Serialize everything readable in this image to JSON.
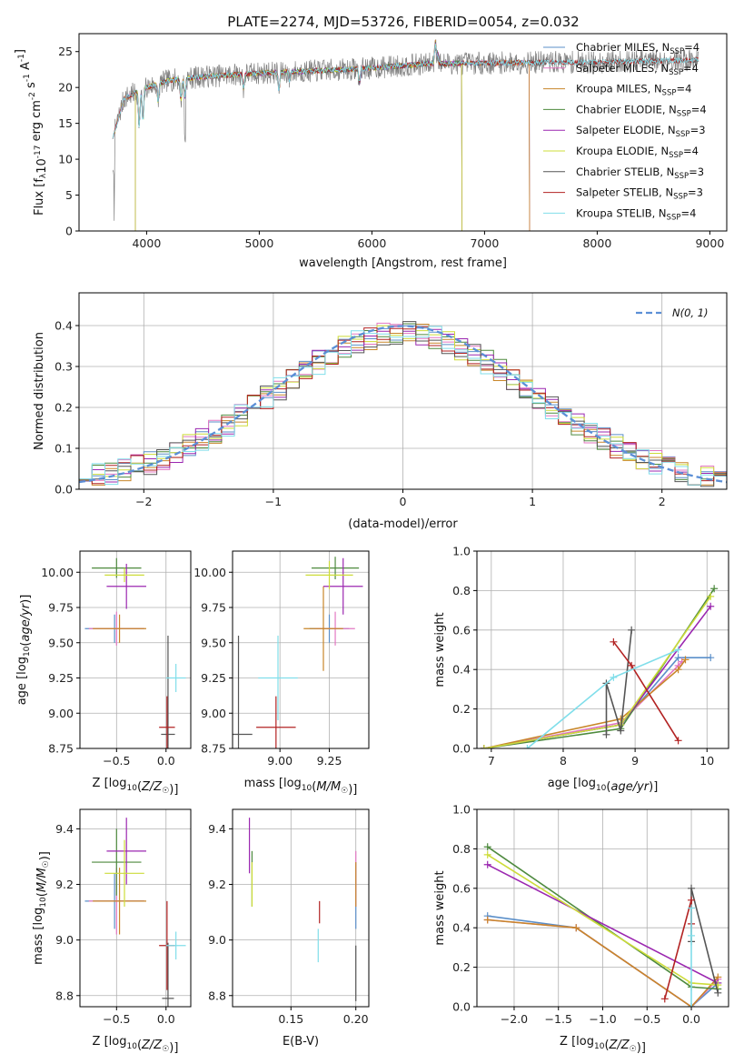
{
  "page_title": "PLATE=2274, MJD=53726, FIBERID=0054, z=0.032",
  "colors": {
    "chabrier_miles": "#5b8fc9",
    "salpeter_miles": "#e377c2",
    "kroupa_miles": "#c8862a",
    "chabrier_elodie": "#4e8a3e",
    "salpeter_elodie": "#9b27b0",
    "kroupa_elodie": "#cddc39",
    "chabrier_stelib": "#555555",
    "salpeter_stelib": "#b22222",
    "kroupa_stelib": "#80deea",
    "normal": "#5b8fd6"
  },
  "chart_data": [
    {
      "id": "spectrum",
      "type": "line",
      "xlabel": "wavelength [Angstrom, rest frame]",
      "ylabel": "Flux [f_λ10^-17 erg cm^-2 s^-1 A^-1]",
      "xlim": [
        3400,
        9150
      ],
      "ylim": [
        0,
        27.5
      ],
      "xticks": [
        4000,
        5000,
        6000,
        7000,
        8000,
        9000
      ],
      "yticks": [
        0,
        5,
        10,
        15,
        20,
        25
      ],
      "grid": false,
      "legend_position": "upper-right",
      "legend": [
        {
          "label": "Chabrier MILES, N",
          "sub": "SSP",
          "eq": "=4",
          "color": "chabrier_miles"
        },
        {
          "label": "Salpeter MILES, N",
          "sub": "SSP",
          "eq": "=4",
          "color": "salpeter_miles"
        },
        {
          "label": "Kroupa MILES, N",
          "sub": "SSP",
          "eq": "=4",
          "color": "kroupa_miles"
        },
        {
          "label": "Chabrier ELODIE, N",
          "sub": "SSP",
          "eq": "=4",
          "color": "chabrier_elodie"
        },
        {
          "label": "Salpeter ELODIE, N",
          "sub": "SSP",
          "eq": "=3",
          "color": "salpeter_elodie"
        },
        {
          "label": "Kroupa ELODIE, N",
          "sub": "SSP",
          "eq": "=4",
          "color": "kroupa_elodie"
        },
        {
          "label": "Chabrier STELIB, N",
          "sub": "SSP",
          "eq": "=3",
          "color": "chabrier_stelib"
        },
        {
          "label": "Salpeter STELIB, N",
          "sub": "SSP",
          "eq": "=3",
          "color": "salpeter_stelib"
        },
        {
          "label": "Kroupa STELIB, N",
          "sub": "SSP",
          "eq": "=4",
          "color": "kroupa_stelib"
        }
      ],
      "continuum": {
        "x": [
          3700,
          3800,
          4000,
          4200,
          4500,
          5000,
          5500,
          6000,
          6500,
          7000,
          7500,
          8000,
          8500,
          8900
        ],
        "y": [
          13,
          18.5,
          20,
          21,
          21.5,
          22,
          22.3,
          22.7,
          23.3,
          23.4,
          23.5,
          23.5,
          23.7,
          23.8
        ]
      },
      "spans": [
        {
          "series": "chabrier_miles",
          "x": [
            3700,
            7400
          ]
        },
        {
          "series": "salpeter_miles",
          "x": [
            3700,
            7400
          ]
        },
        {
          "series": "kroupa_miles",
          "x": [
            3700,
            7400
          ]
        },
        {
          "series": "chabrier_elodie",
          "x": [
            3900,
            6800
          ]
        },
        {
          "series": "salpeter_elodie",
          "x": [
            3900,
            6800
          ]
        },
        {
          "series": "kroupa_elodie",
          "x": [
            3900,
            6800
          ]
        },
        {
          "series": "chabrier_stelib",
          "x": [
            3700,
            8900
          ]
        },
        {
          "series": "salpeter_stelib",
          "x": [
            3700,
            8900
          ]
        },
        {
          "series": "kroupa_stelib",
          "x": [
            3700,
            8900
          ]
        }
      ],
      "data_series": {
        "color": "#808080",
        "x": [
          3700,
          8900
        ]
      }
    },
    {
      "id": "residuals",
      "type": "histogram",
      "xlabel": "(data-model)/error",
      "ylabel": "Normed distribution",
      "xlim": [
        -2.5,
        2.5
      ],
      "ylim": [
        0,
        0.48
      ],
      "xticks": [
        -2,
        -1,
        0,
        1,
        2
      ],
      "yticks": [
        0.0,
        0.1,
        0.2,
        0.3,
        0.4
      ],
      "grid": true,
      "legend_position": "upper-right",
      "legend": [
        {
          "label": "N(0, 1)",
          "color": "normal",
          "style": "dashed"
        }
      ],
      "bin_width": 0.1,
      "bin_start": -2.5
    },
    {
      "id": "age_vs_Z",
      "type": "errorbar",
      "xlabel": "Z [log10(Z/Z☉)]",
      "ylabel": "age [log10(age/yr)]",
      "xlim": [
        -0.87,
        0.25
      ],
      "ylim": [
        8.75,
        10.15
      ],
      "xticks": [
        -0.5,
        0.0
      ],
      "yticks": [
        8.75,
        9.0,
        9.25,
        9.5,
        9.75,
        10.0
      ],
      "grid": true,
      "points": [
        {
          "series": "chabrier_miles",
          "x": -0.52,
          "xerr": 0.3,
          "y": 9.6,
          "yerr": 0.1
        },
        {
          "series": "salpeter_miles",
          "x": -0.5,
          "xerr": 0.28,
          "y": 9.6,
          "yerr": 0.12
        },
        {
          "series": "kroupa_miles",
          "x": -0.47,
          "xerr": 0.27,
          "y": 9.6,
          "yerr": 0.1
        },
        {
          "series": "chabrier_elodie",
          "x": -0.5,
          "xerr": 0.25,
          "y": 10.03,
          "yerr": 0.07
        },
        {
          "series": "salpeter_elodie",
          "x": -0.4,
          "xerr": 0.2,
          "y": 9.9,
          "yerr": 0.16
        },
        {
          "series": "kroupa_elodie",
          "x": -0.42,
          "xerr": 0.2,
          "y": 9.98,
          "yerr": 0.05
        },
        {
          "series": "chabrier_stelib",
          "x": 0.02,
          "xerr": 0.07,
          "y": 8.85,
          "yerr": 0.7
        },
        {
          "series": "salpeter_stelib",
          "x": 0.01,
          "xerr": 0.08,
          "y": 8.9,
          "yerr": 0.22
        },
        {
          "series": "kroupa_stelib",
          "x": 0.1,
          "xerr": 0.1,
          "y": 9.25,
          "yerr": 0.1
        }
      ]
    },
    {
      "id": "age_vs_mass",
      "type": "errorbar",
      "xlabel": "mass [log10(M/M☉)]",
      "ylabel": "",
      "xlim": [
        8.76,
        9.45
      ],
      "ylim": [
        8.75,
        10.15
      ],
      "xticks": [
        9.0,
        9.25
      ],
      "yticks": [
        8.75,
        9.0,
        9.25,
        9.5,
        9.75,
        10.0
      ],
      "grid": true,
      "points": [
        {
          "series": "chabrier_miles",
          "x": 9.25,
          "xerr": 0.1,
          "y": 9.6,
          "yerr": 0.1
        },
        {
          "series": "salpeter_miles",
          "x": 9.28,
          "xerr": 0.1,
          "y": 9.6,
          "yerr": 0.12
        },
        {
          "series": "kroupa_miles",
          "x": 9.22,
          "xerr": 0.1,
          "y": 9.6,
          "yerr": 0.3
        },
        {
          "series": "chabrier_elodie",
          "x": 9.28,
          "xerr": 0.12,
          "y": 10.03,
          "yerr": 0.08
        },
        {
          "series": "salpeter_elodie",
          "x": 9.32,
          "xerr": 0.1,
          "y": 9.9,
          "yerr": 0.2
        },
        {
          "series": "kroupa_elodie",
          "x": 9.25,
          "xerr": 0.12,
          "y": 9.98,
          "yerr": 0.1
        },
        {
          "series": "chabrier_stelib",
          "x": 8.79,
          "xerr": 0.07,
          "y": 8.85,
          "yerr": 0.7
        },
        {
          "series": "salpeter_stelib",
          "x": 8.98,
          "xerr": 0.1,
          "y": 8.9,
          "yerr": 0.22
        },
        {
          "series": "kroupa_stelib",
          "x": 8.99,
          "xerr": 0.1,
          "y": 9.25,
          "yerr": 0.3
        }
      ]
    },
    {
      "id": "weight_vs_age",
      "type": "line",
      "xlabel": "age [log10(age/yr)]",
      "ylabel": "mass weight",
      "xlim": [
        6.8,
        10.3
      ],
      "ylim": [
        0,
        1
      ],
      "xticks": [
        7,
        8,
        9,
        10
      ],
      "yticks": [
        0.0,
        0.2,
        0.4,
        0.6,
        0.8,
        1.0
      ],
      "grid": true,
      "series": [
        {
          "series": "chabrier_miles",
          "x": [
            6.9,
            8.8,
            9.6,
            10.05
          ],
          "y": [
            0.0,
            0.12,
            0.46,
            0.46
          ]
        },
        {
          "series": "salpeter_miles",
          "x": [
            6.9,
            8.8,
            9.6,
            9.65
          ],
          "y": [
            0.0,
            0.13,
            0.42,
            0.44
          ]
        },
        {
          "series": "kroupa_miles",
          "x": [
            6.9,
            8.8,
            9.6,
            9.7
          ],
          "y": [
            0.0,
            0.15,
            0.4,
            0.45
          ]
        },
        {
          "series": "chabrier_elodie",
          "x": [
            6.9,
            8.8,
            10.1
          ],
          "y": [
            0.0,
            0.1,
            0.81
          ]
        },
        {
          "series": "salpeter_elodie",
          "x": [
            6.9,
            8.8,
            10.05
          ],
          "y": [
            0.0,
            0.12,
            0.72
          ]
        },
        {
          "series": "kroupa_elodie",
          "x": [
            6.9,
            8.8,
            10.05
          ],
          "y": [
            0.0,
            0.12,
            0.77
          ]
        },
        {
          "series": "chabrier_stelib",
          "x": [
            8.6,
            8.6,
            8.8,
            8.95
          ],
          "y": [
            0.07,
            0.33,
            0.09,
            0.6
          ]
        },
        {
          "series": "salpeter_stelib",
          "x": [
            8.7,
            8.95,
            9.6
          ],
          "y": [
            0.54,
            0.42,
            0.04
          ]
        },
        {
          "series": "kroupa_stelib",
          "x": [
            7.5,
            8.7,
            9.6
          ],
          "y": [
            0.0,
            0.36,
            0.5
          ]
        }
      ]
    },
    {
      "id": "mass_vs_Z",
      "type": "errorbar",
      "xlabel": "Z [log10(Z/Z☉)]",
      "ylabel": "mass [log10(M/M☉)]",
      "xlim": [
        -0.87,
        0.25
      ],
      "ylim": [
        8.76,
        9.47
      ],
      "xticks": [
        -0.5,
        0.0
      ],
      "yticks": [
        8.8,
        9.0,
        9.2,
        9.4
      ],
      "grid": true,
      "points": [
        {
          "series": "chabrier_miles",
          "x": -0.52,
          "xerr": 0.3,
          "y": 9.14,
          "yerr": 0.1
        },
        {
          "series": "salpeter_miles",
          "x": -0.5,
          "xerr": 0.28,
          "y": 9.14,
          "yerr": 0.12
        },
        {
          "series": "kroupa_miles",
          "x": -0.47,
          "xerr": 0.27,
          "y": 9.14,
          "yerr": 0.12
        },
        {
          "series": "chabrier_elodie",
          "x": -0.5,
          "xerr": 0.25,
          "y": 9.28,
          "yerr": 0.12
        },
        {
          "series": "salpeter_elodie",
          "x": -0.4,
          "xerr": 0.2,
          "y": 9.32,
          "yerr": 0.12
        },
        {
          "series": "kroupa_elodie",
          "x": -0.42,
          "xerr": 0.2,
          "y": 9.24,
          "yerr": 0.12
        },
        {
          "series": "chabrier_stelib",
          "x": 0.02,
          "xerr": 0.06,
          "y": 8.79,
          "yerr": 0.2
        },
        {
          "series": "salpeter_stelib",
          "x": 0.01,
          "xerr": 0.08,
          "y": 8.98,
          "yerr": 0.16
        },
        {
          "series": "kroupa_stelib",
          "x": 0.1,
          "xerr": 0.1,
          "y": 8.98,
          "yerr": 0.05
        }
      ]
    },
    {
      "id": "mass_vs_ebv",
      "type": "errorbar",
      "xlabel": "E(B-V)",
      "ylabel": "",
      "xlim": [
        0.105,
        0.21
      ],
      "ylim": [
        8.76,
        9.47
      ],
      "xticks": [
        0.15,
        0.2
      ],
      "yticks": [
        8.8,
        9.0,
        9.2,
        9.4
      ],
      "grid": true,
      "points": [
        {
          "series": "chabrier_miles",
          "x": 0.2,
          "xerr": 0,
          "y": 9.16,
          "yerr": 0.12
        },
        {
          "series": "salpeter_miles",
          "x": 0.2,
          "xerr": 0,
          "y": 9.22,
          "yerr": 0.1
        },
        {
          "series": "kroupa_miles",
          "x": 0.2,
          "xerr": 0,
          "y": 9.2,
          "yerr": 0.08
        },
        {
          "series": "chabrier_elodie",
          "x": 0.12,
          "xerr": 0,
          "y": 9.22,
          "yerr": 0.1
        },
        {
          "series": "salpeter_elodie",
          "x": 0.118,
          "xerr": 0,
          "y": 9.34,
          "yerr": 0.1
        },
        {
          "series": "kroupa_elodie",
          "x": 0.12,
          "xerr": 0,
          "y": 9.2,
          "yerr": 0.08
        },
        {
          "series": "chabrier_stelib",
          "x": 0.2,
          "xerr": 0,
          "y": 8.88,
          "yerr": 0.1
        },
        {
          "series": "salpeter_stelib",
          "x": 0.172,
          "xerr": 0,
          "y": 9.1,
          "yerr": 0.04
        },
        {
          "series": "kroupa_stelib",
          "x": 0.171,
          "xerr": 0,
          "y": 8.98,
          "yerr": 0.06
        }
      ]
    },
    {
      "id": "weight_vs_Z",
      "type": "line",
      "xlabel": "Z [log10(Z/Z☉)]",
      "ylabel": "mass weight",
      "xlim": [
        -2.42,
        0.42
      ],
      "ylim": [
        0,
        1
      ],
      "xticks": [
        -2.0,
        -1.5,
        -1.0,
        -0.5,
        0.0
      ],
      "yticks": [
        0.0,
        0.2,
        0.4,
        0.6,
        0.8,
        1.0
      ],
      "grid": true,
      "series": [
        {
          "series": "chabrier_miles",
          "x": [
            -2.3,
            -1.3,
            0.0,
            0.3
          ],
          "y": [
            0.46,
            0.4,
            0.0,
            0.12
          ]
        },
        {
          "series": "salpeter_miles",
          "x": [
            -2.3,
            -1.3,
            0.0,
            0.3
          ],
          "y": [
            0.44,
            0.4,
            0.0,
            0.14
          ]
        },
        {
          "series": "kroupa_miles",
          "x": [
            -2.3,
            -1.3,
            0.0,
            0.3
          ],
          "y": [
            0.44,
            0.4,
            0.0,
            0.15
          ]
        },
        {
          "series": "chabrier_elodie",
          "x": [
            -2.3,
            0.0,
            0.3
          ],
          "y": [
            0.81,
            0.1,
            0.09
          ]
        },
        {
          "series": "salpeter_elodie",
          "x": [
            -2.3,
            0.3
          ],
          "y": [
            0.72,
            0.12
          ]
        },
        {
          "series": "kroupa_elodie",
          "x": [
            -2.3,
            0.0,
            0.3
          ],
          "y": [
            0.77,
            0.12,
            0.11
          ]
        },
        {
          "series": "chabrier_stelib",
          "x": [
            0.0,
            0.0,
            0.3
          ],
          "y": [
            0.33,
            0.6,
            0.07
          ]
        },
        {
          "series": "salpeter_stelib",
          "x": [
            -0.3,
            0.0,
            0.0
          ],
          "y": [
            0.04,
            0.54,
            0.42
          ]
        },
        {
          "series": "kroupa_stelib",
          "x": [
            0.0,
            0.0,
            0.0
          ],
          "y": [
            0.0,
            0.36,
            0.5
          ]
        }
      ]
    }
  ]
}
